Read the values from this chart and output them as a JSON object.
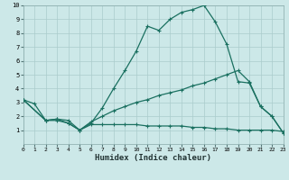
{
  "xlabel": "Humidex (Indice chaleur)",
  "bg_color": "#cce8e8",
  "grid_color": "#aacccc",
  "line_color": "#1a7060",
  "line1_x": [
    0,
    1,
    2,
    3,
    4,
    5,
    6,
    7,
    8,
    9,
    10,
    11,
    12,
    13,
    14,
    15,
    16,
    17,
    18,
    19,
    20,
    21,
    22,
    23
  ],
  "line1_y": [
    3.2,
    2.9,
    1.7,
    1.8,
    1.7,
    1.0,
    1.5,
    2.6,
    4.0,
    5.3,
    6.7,
    8.5,
    8.2,
    9.0,
    9.5,
    9.7,
    10.0,
    8.8,
    7.2,
    4.5,
    4.4,
    2.7,
    2.0,
    0.8
  ],
  "line2_x": [
    0,
    2,
    3,
    4,
    5,
    6,
    7,
    8,
    9,
    10,
    11,
    12,
    13,
    14,
    15,
    16,
    17,
    18,
    19,
    20,
    21,
    22,
    23
  ],
  "line2_y": [
    3.2,
    1.7,
    1.8,
    1.5,
    1.0,
    1.6,
    2.0,
    2.4,
    2.7,
    3.0,
    3.2,
    3.5,
    3.7,
    3.9,
    4.2,
    4.4,
    4.7,
    5.0,
    5.3,
    4.5,
    2.7,
    2.0,
    0.8
  ],
  "line3_x": [
    0,
    2,
    3,
    4,
    5,
    6,
    7,
    8,
    9,
    10,
    11,
    12,
    13,
    14,
    15,
    16,
    17,
    18,
    19,
    20,
    21,
    22,
    23
  ],
  "line3_y": [
    3.2,
    1.7,
    1.7,
    1.5,
    1.0,
    1.4,
    1.4,
    1.4,
    1.4,
    1.4,
    1.3,
    1.3,
    1.3,
    1.3,
    1.2,
    1.2,
    1.1,
    1.1,
    1.0,
    1.0,
    1.0,
    1.0,
    0.9
  ],
  "ylim": [
    0,
    10
  ],
  "xlim": [
    0,
    23
  ],
  "yticks": [
    1,
    2,
    3,
    4,
    5,
    6,
    7,
    8,
    9,
    10
  ],
  "xticks": [
    0,
    1,
    2,
    3,
    4,
    5,
    6,
    7,
    8,
    9,
    10,
    11,
    12,
    13,
    14,
    15,
    16,
    17,
    18,
    19,
    20,
    21,
    22,
    23
  ]
}
